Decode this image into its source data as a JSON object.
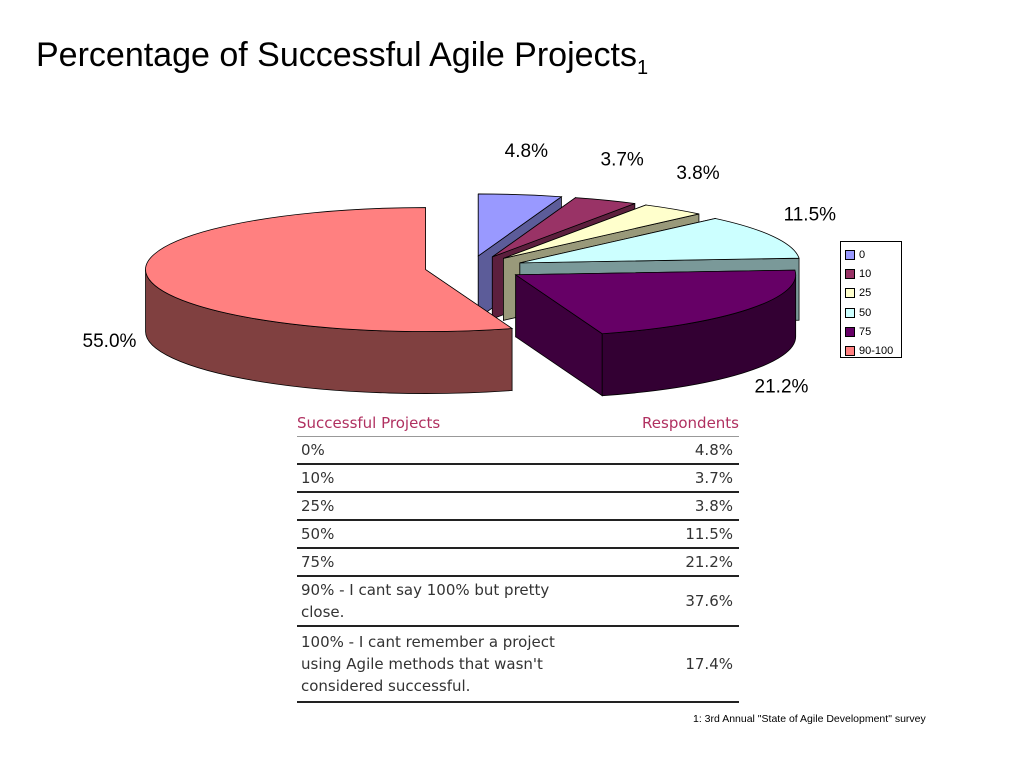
{
  "title": "Percentage of Successful Agile Projects",
  "title_subscript": "1",
  "chart_data": {
    "type": "pie",
    "title": "Percentage of Successful Agile Projects",
    "labels": [
      "0",
      "10",
      "25",
      "50",
      "75",
      "90-100"
    ],
    "values": [
      4.8,
      3.7,
      3.8,
      11.5,
      21.2,
      55.0
    ],
    "data_labels": [
      "4.8%",
      "3.7%",
      "3.8%",
      "11.5%",
      "21.2%",
      "55.0%"
    ],
    "colors": [
      "#9999FF",
      "#993366",
      "#FFFFCC",
      "#CCFFFF",
      "#660066",
      "#FF8080"
    ],
    "legend_position": "right",
    "style": "3d-exploded"
  },
  "table": {
    "headers": [
      "Successful Projects",
      "Respondents"
    ],
    "rows": [
      {
        "label": "0%",
        "value": "4.8%"
      },
      {
        "label": "10%",
        "value": "3.7%"
      },
      {
        "label": "25%",
        "value": "3.8%"
      },
      {
        "label": "50%",
        "value": "11.5%"
      },
      {
        "label": "75%",
        "value": "21.2%"
      },
      {
        "label": "90% - I cant say 100% but pretty close.",
        "value": "37.6%"
      },
      {
        "label": "100% - I cant remember a project using Agile methods that wasn't considered successful.",
        "value": "17.4%"
      }
    ]
  },
  "footnote": "1: 3rd Annual \"State of Agile Development\" survey"
}
